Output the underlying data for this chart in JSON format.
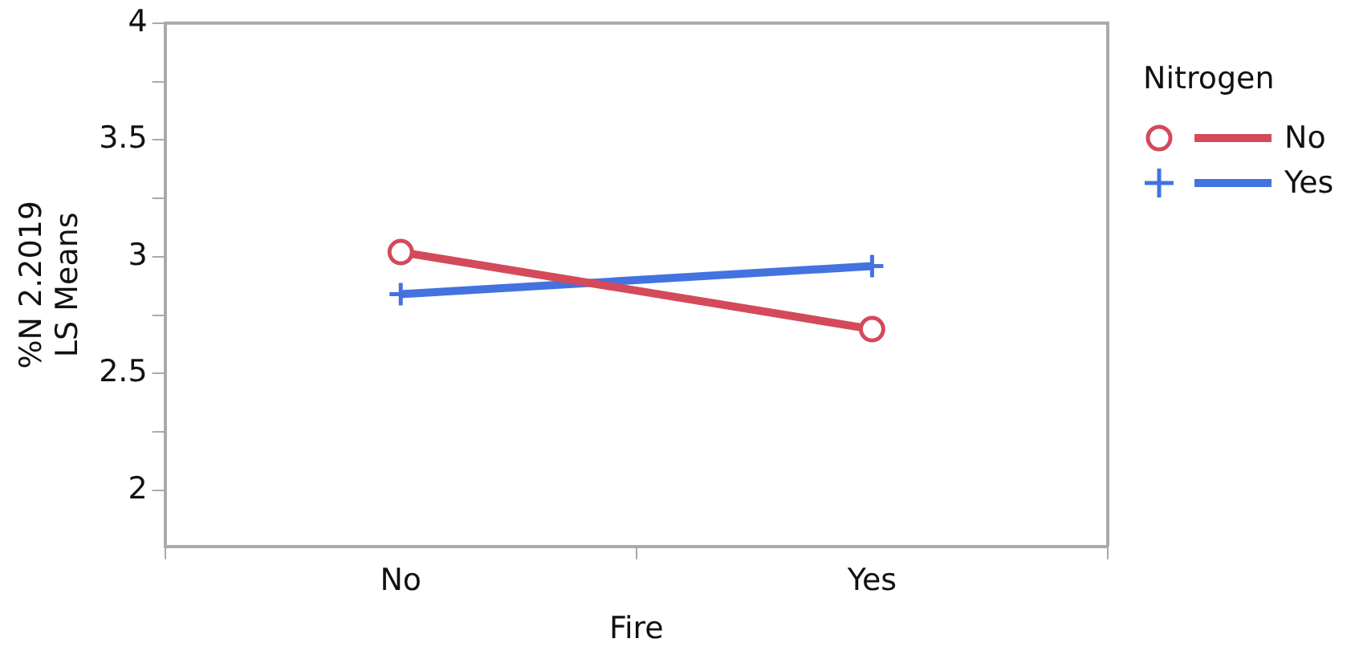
{
  "chart_data": {
    "type": "line",
    "xlabel": "Fire",
    "ylabel": "%N 2.2019\nLS Means",
    "legend_title": "Nitrogen",
    "categories": [
      "No",
      "Yes"
    ],
    "series": [
      {
        "name": "No",
        "color": "#d44a5a",
        "values": [
          3.02,
          2.69
        ],
        "marker": "circle"
      },
      {
        "name": "Yes",
        "color": "#4472de",
        "values": [
          2.84,
          2.96
        ],
        "marker": "cross"
      }
    ],
    "ylim": [
      1.76,
      4
    ],
    "yticks": [
      2,
      {
        "value": 2.25,
        "label": null
      },
      2.5,
      {
        "value": 2.75,
        "label": null
      },
      3,
      {
        "value": 3.25,
        "label": null
      },
      3.5,
      {
        "value": 3.75,
        "label": null
      },
      4
    ],
    "grid": false,
    "legend": "right",
    "line_style": "solid"
  }
}
